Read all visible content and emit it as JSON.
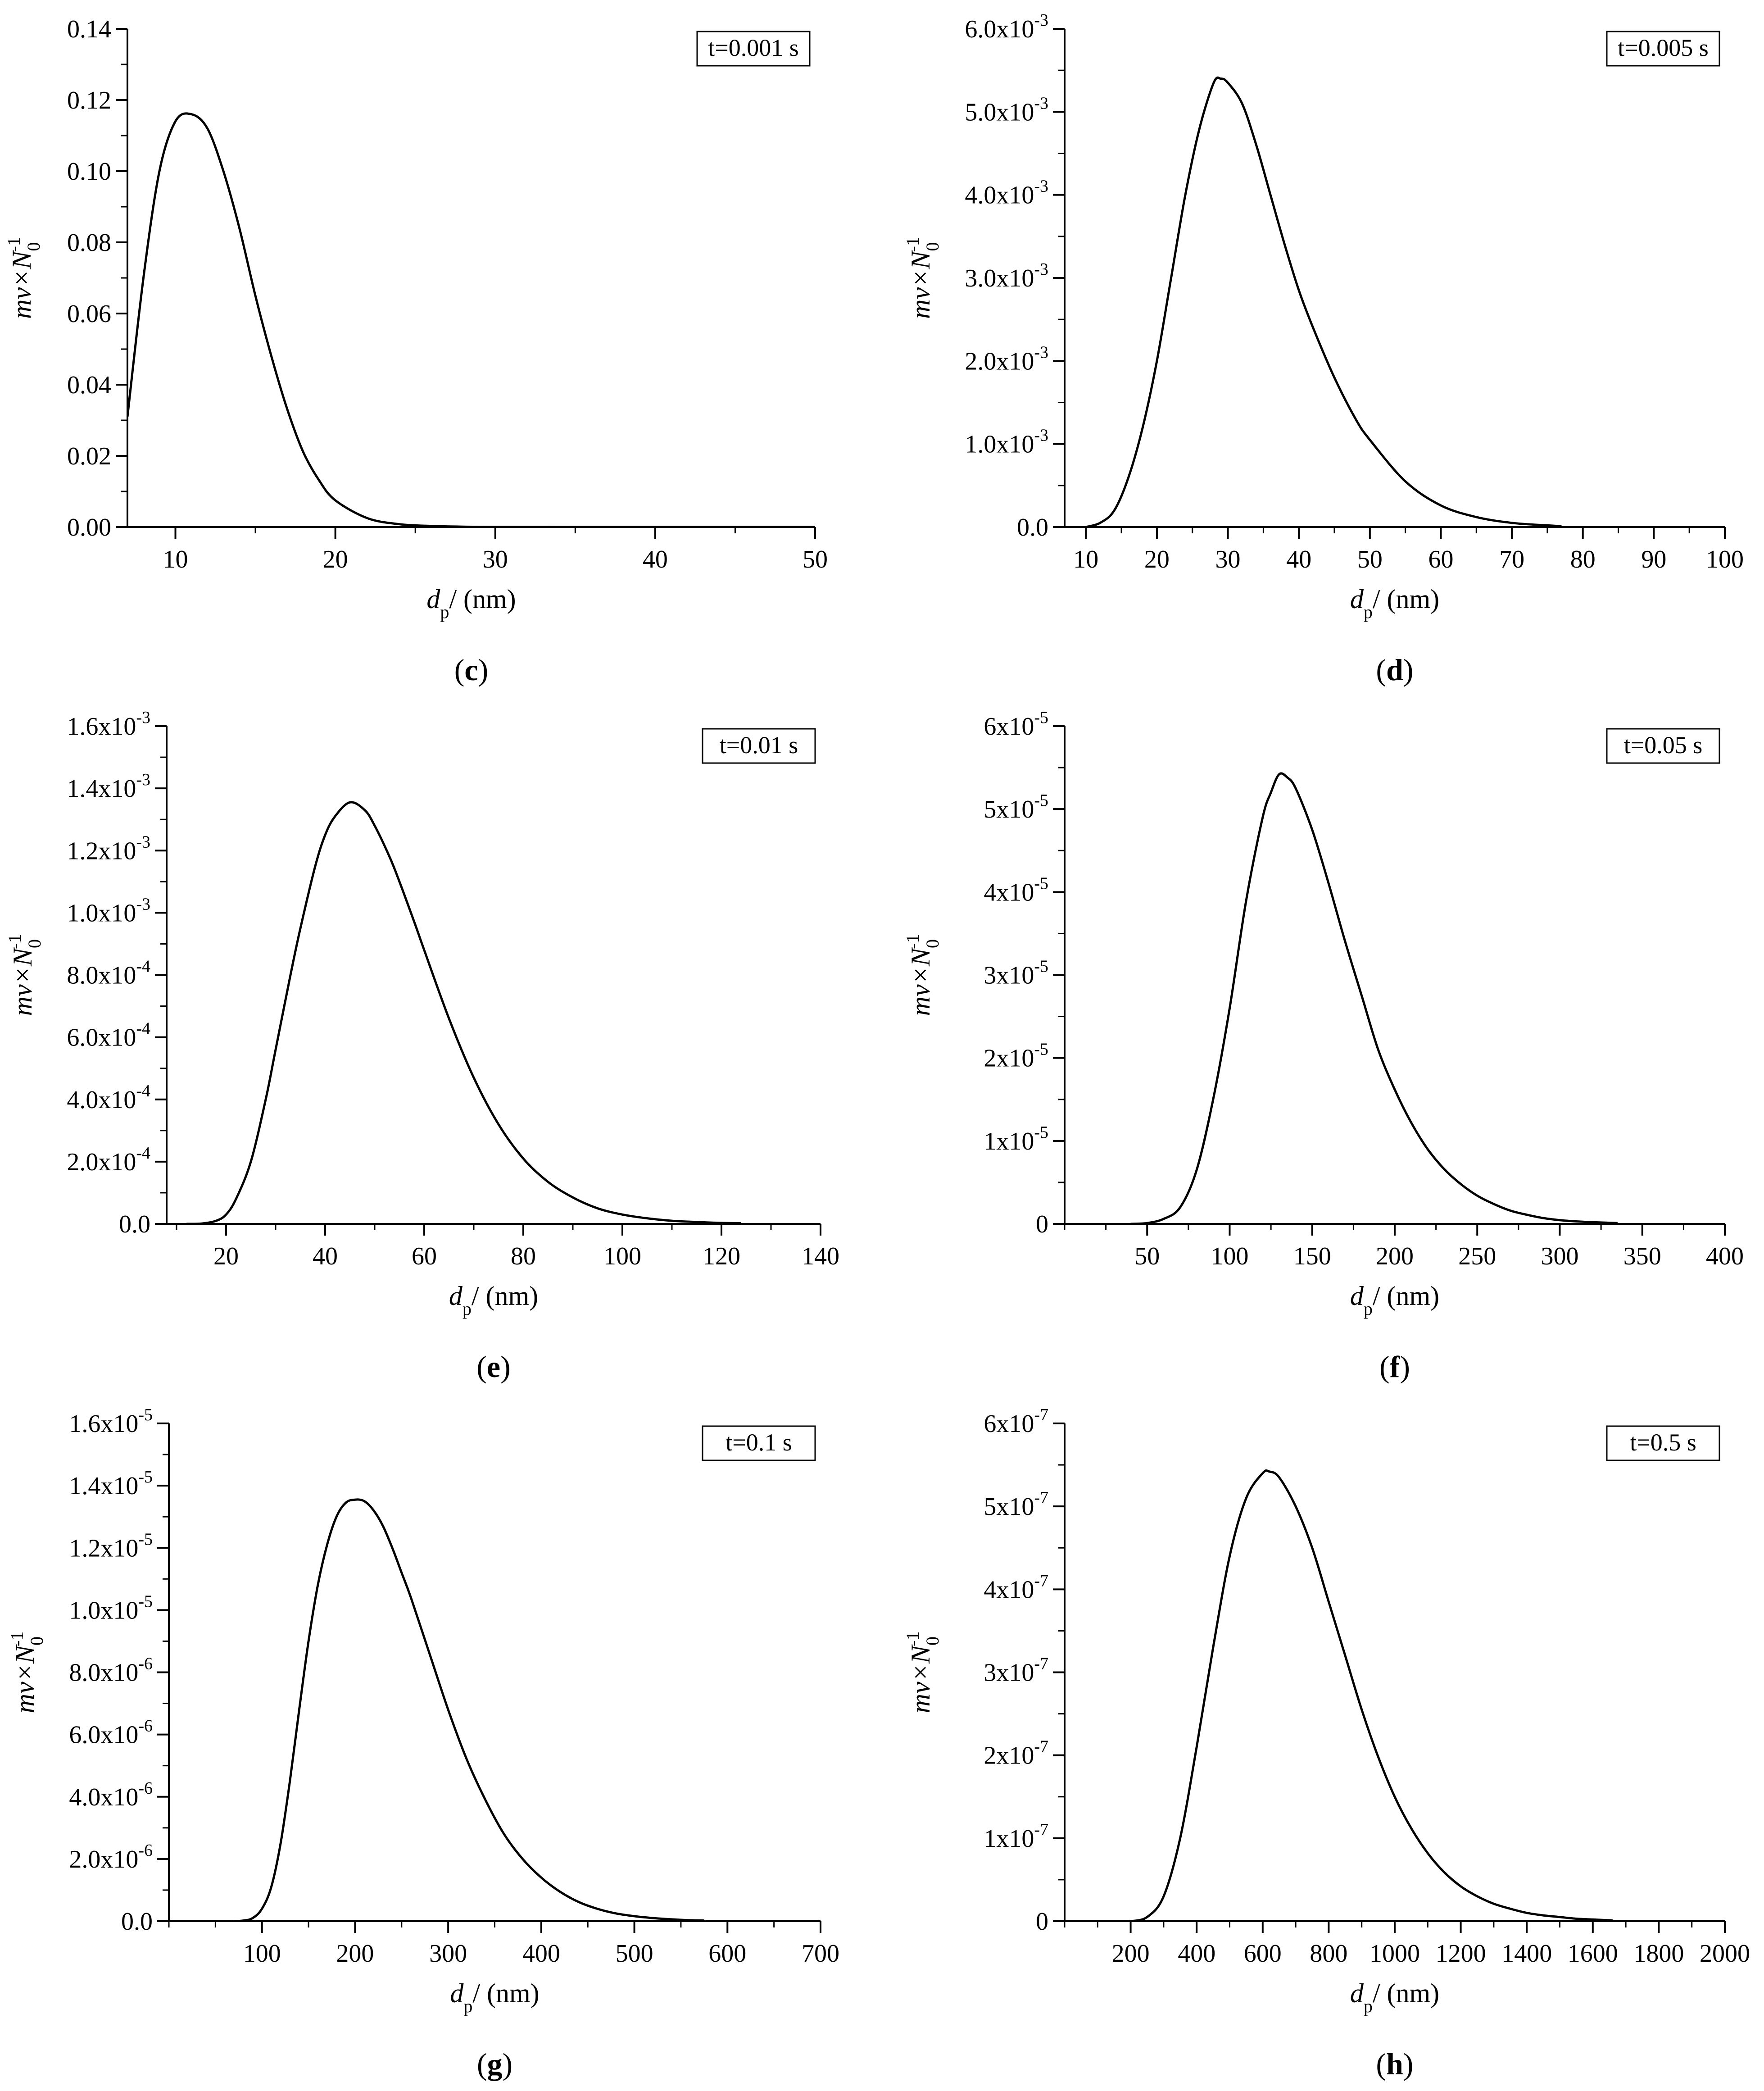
{
  "figure": {
    "panels": [
      {
        "id": "c",
        "caption_letter": "c",
        "legend": "t=0.001 s",
        "xlabel": {
          "main": "d",
          "sub": "p",
          "unit": "/ (nm)"
        },
        "ylabel": {
          "main": "mv×N",
          "sub": "0",
          "sup": "-1"
        },
        "xlim": [
          7,
          50
        ],
        "ylim": [
          0,
          0.14
        ],
        "x_ticks": [
          10,
          20,
          30,
          40,
          50
        ],
        "x_minor_step": 5,
        "y_ticks": [
          0,
          0.02,
          0.04,
          0.06,
          0.08,
          0.1,
          0.12,
          0.14
        ],
        "y_tick_labels": [
          {
            "text": "0.00"
          },
          {
            "text": "0.02"
          },
          {
            "text": "0.04"
          },
          {
            "text": "0.06"
          },
          {
            "text": "0.08"
          },
          {
            "text": "0.10"
          },
          {
            "text": "0.12"
          },
          {
            "text": "0.14"
          }
        ],
        "y_minor_step": 0.01
      },
      {
        "id": "d",
        "caption_letter": "d",
        "legend": "t=0.005 s",
        "xlabel": {
          "main": "d",
          "sub": "p",
          "unit": "/ (nm)"
        },
        "ylabel": {
          "main": "mv×N",
          "sub": "0",
          "sup": "-1"
        },
        "xlim": [
          7,
          100
        ],
        "ylim": [
          0,
          0.006
        ],
        "x_ticks": [
          10,
          20,
          30,
          40,
          50,
          60,
          70,
          80,
          90,
          100
        ],
        "x_minor_step": 5,
        "y_ticks": [
          0,
          0.001,
          0.002,
          0.003,
          0.004,
          0.005,
          0.006
        ],
        "y_tick_labels": [
          {
            "text": "0.0"
          },
          {
            "text": "1.0x10",
            "exp": "-3"
          },
          {
            "text": "2.0x10",
            "exp": "-3"
          },
          {
            "text": "3.0x10",
            "exp": "-3"
          },
          {
            "text": "4.0x10",
            "exp": "-3"
          },
          {
            "text": "5.0x10",
            "exp": "-3"
          },
          {
            "text": "6.0x10",
            "exp": "-3"
          }
        ],
        "y_minor_step": 0.0005
      },
      {
        "id": "e",
        "caption_letter": "e",
        "legend": "t=0.01 s",
        "xlabel": {
          "main": "d",
          "sub": "p",
          "unit": "/ (nm)"
        },
        "ylabel": {
          "main": "mv×N",
          "sub": "0",
          "sup": "-1"
        },
        "xlim": [
          8,
          140
        ],
        "ylim": [
          0,
          0.0016
        ],
        "x_ticks": [
          20,
          40,
          60,
          80,
          100,
          120,
          140
        ],
        "x_minor_step": 10,
        "y_ticks": [
          0,
          0.0002,
          0.0004,
          0.0006,
          0.0008,
          0.001,
          0.0012,
          0.0014,
          0.0016
        ],
        "y_tick_labels": [
          {
            "text": "0.0"
          },
          {
            "text": "2.0x10",
            "exp": "-4"
          },
          {
            "text": "4.0x10",
            "exp": "-4"
          },
          {
            "text": "6.0x10",
            "exp": "-4"
          },
          {
            "text": "8.0x10",
            "exp": "-4"
          },
          {
            "text": "1.0x10",
            "exp": "-3"
          },
          {
            "text": "1.2x10",
            "exp": "-3"
          },
          {
            "text": "1.4x10",
            "exp": "-3"
          },
          {
            "text": "1.6x10",
            "exp": "-3"
          }
        ],
        "y_minor_step": 0.0001
      },
      {
        "id": "f",
        "caption_letter": "f",
        "legend": "t=0.05 s",
        "xlabel": {
          "main": "d",
          "sub": "p",
          "unit": "/ (nm)"
        },
        "ylabel": {
          "main": "mv×N",
          "sub": "0",
          "sup": "-1"
        },
        "xlim": [
          0,
          400
        ],
        "ylim": [
          0,
          6e-05
        ],
        "x_ticks": [
          50,
          100,
          150,
          200,
          250,
          300,
          350,
          400
        ],
        "x_minor_step": 25,
        "y_ticks": [
          0,
          1e-05,
          2e-05,
          3e-05,
          4e-05,
          5e-05,
          6e-05
        ],
        "y_tick_labels": [
          {
            "text": "0"
          },
          {
            "text": "1x10",
            "exp": "-5"
          },
          {
            "text": "2x10",
            "exp": "-5"
          },
          {
            "text": "3x10",
            "exp": "-5"
          },
          {
            "text": "4x10",
            "exp": "-5"
          },
          {
            "text": "5x10",
            "exp": "-5"
          },
          {
            "text": "6x10",
            "exp": "-5"
          }
        ],
        "y_minor_step": 5e-06
      },
      {
        "id": "g",
        "caption_letter": "g",
        "legend": "t=0.1 s",
        "xlabel": {
          "main": "d",
          "sub": "p",
          "unit": "/ (nm)"
        },
        "ylabel": {
          "main": "mv×N",
          "sub": "0",
          "sup": "-1"
        },
        "xlim": [
          0,
          700
        ],
        "ylim": [
          0,
          1.6e-05
        ],
        "x_ticks": [
          100,
          200,
          300,
          400,
          500,
          600,
          700
        ],
        "x_minor_step": 50,
        "y_ticks": [
          0,
          2e-06,
          4e-06,
          6e-06,
          8e-06,
          1e-05,
          1.2e-05,
          1.4e-05,
          1.6e-05
        ],
        "y_tick_labels": [
          {
            "text": "0.0"
          },
          {
            "text": "2.0x10",
            "exp": "-6"
          },
          {
            "text": "4.0x10",
            "exp": "-6"
          },
          {
            "text": "6.0x10",
            "exp": "-6"
          },
          {
            "text": "8.0x10",
            "exp": "-6"
          },
          {
            "text": "1.0x10",
            "exp": "-5"
          },
          {
            "text": "1.2x10",
            "exp": "-5"
          },
          {
            "text": "1.4x10",
            "exp": "-5"
          },
          {
            "text": "1.6x10",
            "exp": "-5"
          }
        ],
        "y_minor_step": 1e-06
      },
      {
        "id": "h",
        "caption_letter": "h",
        "legend": "t=0.5 s",
        "xlabel": {
          "main": "d",
          "sub": "p",
          "unit": "/ (nm)"
        },
        "ylabel": {
          "main": "mv×N",
          "sub": "0",
          "sup": "-1"
        },
        "xlim": [
          0,
          2000
        ],
        "ylim": [
          0,
          6e-07
        ],
        "x_ticks": [
          200,
          400,
          600,
          800,
          1000,
          1200,
          1400,
          1600,
          1800,
          2000
        ],
        "x_minor_step": 100,
        "y_ticks": [
          0,
          1e-07,
          2e-07,
          3e-07,
          4e-07,
          5e-07,
          6e-07
        ],
        "y_tick_labels": [
          {
            "text": "0"
          },
          {
            "text": "1x10",
            "exp": "-7"
          },
          {
            "text": "2x10",
            "exp": "-7"
          },
          {
            "text": "3x10",
            "exp": "-7"
          },
          {
            "text": "4x10",
            "exp": "-7"
          },
          {
            "text": "5x10",
            "exp": "-7"
          },
          {
            "text": "6x10",
            "exp": "-7"
          }
        ],
        "y_minor_step": 5e-08
      }
    ]
  },
  "chart_data": [
    {
      "type": "line",
      "title": "t=0.001 s",
      "xlabel": "dp / (nm)",
      "ylabel": "mv×N0^-1",
      "xlim": [
        7,
        50
      ],
      "ylim": [
        0,
        0.14
      ],
      "series": [
        {
          "name": "t=0.001 s",
          "x": [
            7,
            8,
            9,
            10,
            11,
            12,
            13,
            14,
            15,
            16,
            17,
            18,
            19,
            20,
            22,
            24,
            26,
            28,
            30,
            35,
            40,
            50
          ],
          "y": [
            0.031,
            0.07,
            0.1,
            0.114,
            0.116,
            0.112,
            0.1,
            0.084,
            0.065,
            0.048,
            0.033,
            0.021,
            0.013,
            0.0075,
            0.0025,
            0.0008,
            0.0003,
            0.0001,
            4e-05,
            0.0,
            0.0,
            0.0
          ]
        }
      ]
    },
    {
      "type": "line",
      "title": "t=0.005 s",
      "xlabel": "dp / (nm)",
      "ylabel": "mv×N0^-1",
      "xlim": [
        7,
        100
      ],
      "ylim": [
        0,
        0.006
      ],
      "series": [
        {
          "name": "t=0.005 s",
          "x": [
            10,
            12,
            14,
            16,
            18,
            20,
            22,
            24,
            26,
            28,
            29,
            30,
            32,
            34,
            36,
            38,
            40,
            42,
            45,
            48,
            50,
            55,
            60,
            65,
            70,
            75,
            77
          ],
          "y": [
            0.0,
            5e-05,
            0.0002,
            0.0006,
            0.0012,
            0.002,
            0.003,
            0.004,
            0.0048,
            0.00535,
            0.0054,
            0.00535,
            0.0051,
            0.0046,
            0.004,
            0.0034,
            0.00285,
            0.0024,
            0.0018,
            0.0013,
            0.00105,
            0.00055,
            0.00026,
            0.00012,
            5e-05,
            2e-05,
            1e-05
          ]
        }
      ]
    },
    {
      "type": "line",
      "title": "t=0.01 s",
      "xlabel": "dp / (nm)",
      "ylabel": "mv×N0^-1",
      "xlim": [
        8,
        140
      ],
      "ylim": [
        0,
        0.0016
      ],
      "series": [
        {
          "name": "t=0.01 s",
          "x": [
            12,
            15,
            18,
            20,
            22,
            25,
            28,
            30,
            33,
            35,
            38,
            40,
            42,
            45,
            48,
            50,
            53,
            55,
            58,
            60,
            65,
            70,
            75,
            80,
            85,
            90,
            95,
            100,
            105,
            110,
            115,
            120,
            124
          ],
          "y": [
            0.0,
            1e-06,
            1e-05,
            3e-05,
            8e-05,
            0.0002,
            0.0004,
            0.00056,
            0.0008,
            0.00095,
            0.00115,
            0.00125,
            0.00131,
            0.001355,
            0.00133,
            0.00128,
            0.00118,
            0.0011,
            0.00097,
            0.00088,
            0.00066,
            0.00047,
            0.00032,
            0.00021,
            0.000135,
            8.5e-05,
            5e-05,
            3e-05,
            1.8e-05,
            1e-05,
            6e-06,
            3e-06,
            2e-06
          ]
        }
      ]
    },
    {
      "type": "line",
      "title": "t=0.05 s",
      "xlabel": "dp / (nm)",
      "ylabel": "mv×N0^-1",
      "xlim": [
        0,
        400
      ],
      "ylim": [
        0,
        6e-05
      ],
      "series": [
        {
          "name": "t=0.05 s",
          "x": [
            40,
            50,
            60,
            70,
            80,
            90,
            100,
            110,
            120,
            125,
            130,
            135,
            140,
            150,
            160,
            170,
            180,
            190,
            200,
            210,
            220,
            230,
            240,
            250,
            260,
            270,
            280,
            290,
            300,
            310,
            320,
            335
          ],
          "y": [
            0.0,
            1e-07,
            6e-07,
            2e-06,
            6.5e-06,
            1.5e-05,
            2.6e-05,
            3.9e-05,
            4.9e-05,
            5.2e-05,
            5.42e-05,
            5.38e-05,
            5.25e-05,
            4.75e-05,
            4.1e-05,
            3.4e-05,
            2.75e-05,
            2.1e-05,
            1.62e-05,
            1.22e-05,
            9e-06,
            6.6e-06,
            4.8e-06,
            3.4e-06,
            2.4e-06,
            1.6e-06,
            1.1e-06,
            7e-07,
            4.5e-07,
            3e-07,
            2e-07,
            1e-07
          ]
        }
      ]
    },
    {
      "type": "line",
      "title": "t=0.1 s",
      "xlabel": "dp / (nm)",
      "ylabel": "mv×N0^-1",
      "xlim": [
        0,
        700
      ],
      "ylim": [
        0,
        1.6e-05
      ],
      "series": [
        {
          "name": "t=0.1 s",
          "x": [
            70,
            80,
            90,
            100,
            110,
            120,
            130,
            140,
            150,
            160,
            170,
            180,
            190,
            200,
            210,
            220,
            230,
            240,
            250,
            260,
            280,
            300,
            320,
            340,
            360,
            380,
            400,
            420,
            440,
            460,
            480,
            500,
            520,
            540,
            560,
            575
          ],
          "y": [
            0.0,
            2e-08,
            1e-07,
            4e-07,
            1.1e-06,
            2.5e-06,
            4.5e-06,
            6.8e-06,
            9e-06,
            1.08e-05,
            1.21e-05,
            1.3e-05,
            1.345e-05,
            1.355e-05,
            1.35e-05,
            1.32e-05,
            1.27e-05,
            1.2e-05,
            1.12e-05,
            1.04e-05,
            8.6e-06,
            6.8e-06,
            5.2e-06,
            3.9e-06,
            2.8e-06,
            2e-06,
            1.4e-06,
            9.5e-07,
            6.2e-07,
            4e-07,
            2.5e-07,
            1.6e-07,
            1e-07,
            6e-08,
            3e-08,
            2e-08
          ]
        }
      ]
    },
    {
      "type": "line",
      "title": "t=0.5 s",
      "xlabel": "dp / (nm)",
      "ylabel": "mv×N0^-1",
      "xlim": [
        0,
        2000
      ],
      "ylim": [
        0,
        6e-07
      ],
      "series": [
        {
          "name": "t=0.5 s",
          "x": [
            200,
            250,
            300,
            350,
            400,
            450,
            500,
            550,
            600,
            620,
            650,
            700,
            750,
            800,
            850,
            900,
            950,
            1000,
            1050,
            1100,
            1150,
            1200,
            1250,
            1300,
            1350,
            1400,
            1450,
            1500,
            1550,
            1600,
            1660
          ],
          "y": [
            0.0,
            5e-09,
            3e-08,
            1e-07,
            2.1e-07,
            3.3e-07,
            4.4e-07,
            5.1e-07,
            5.4e-07,
            5.42e-07,
            5.35e-07,
            5e-07,
            4.5e-07,
            3.85e-07,
            3.2e-07,
            2.55e-07,
            1.98e-07,
            1.5e-07,
            1.12e-07,
            8.2e-08,
            5.9e-08,
            4.2e-08,
            3e-08,
            2.1e-08,
            1.5e-08,
            1e-08,
            7e-09,
            5e-09,
            3e-09,
            2e-09,
            1e-09
          ]
        }
      ]
    }
  ]
}
